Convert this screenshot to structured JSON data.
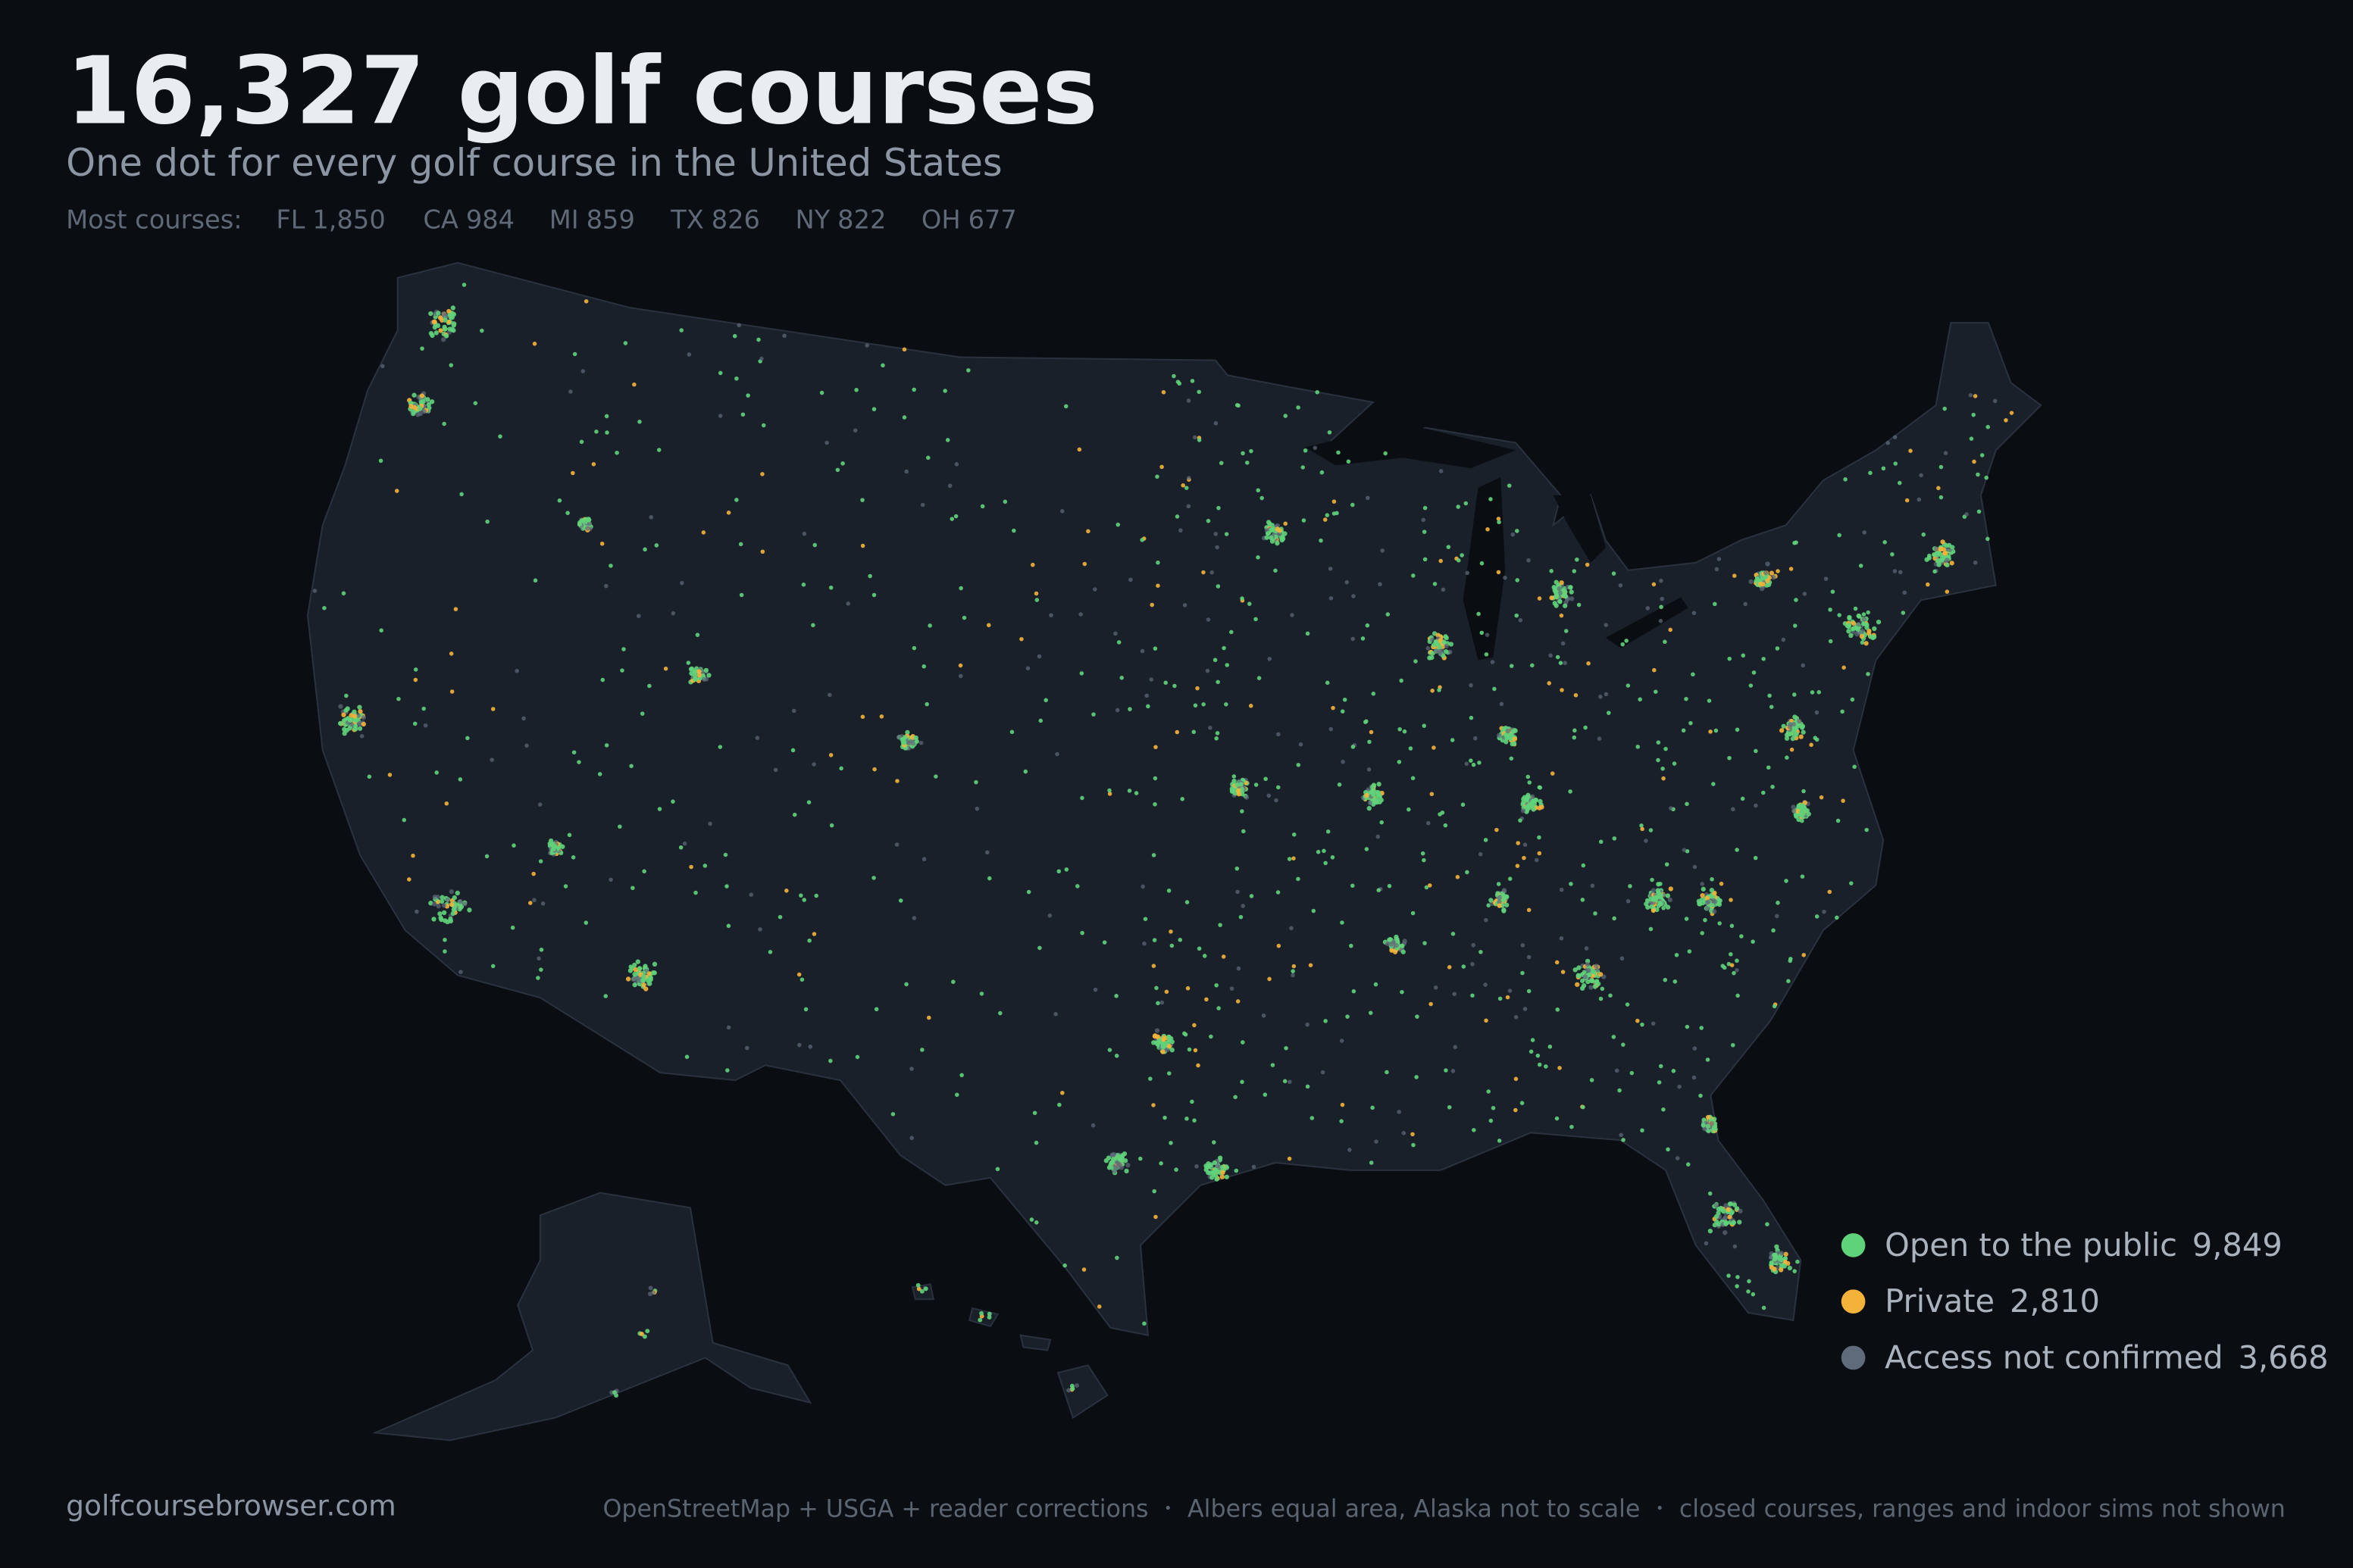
{
  "title": "16,327 golf courses",
  "subtitle": "One dot for every golf course in the United States",
  "top_states": {
    "label": "Most courses:",
    "items": [
      {
        "state": "FL",
        "count": "1,850"
      },
      {
        "state": "CA",
        "count": "984"
      },
      {
        "state": "MI",
        "count": "859"
      },
      {
        "state": "TX",
        "count": "826"
      },
      {
        "state": "NY",
        "count": "822"
      },
      {
        "state": "OH",
        "count": "677"
      }
    ]
  },
  "legend": [
    {
      "label": "Open to the public",
      "count": "9,849",
      "color": "#5fd37a"
    },
    {
      "label": "Private",
      "count": "2,810",
      "color": "#f4b23a"
    },
    {
      "label": "Access not confirmed",
      "count": "3,668",
      "color": "#5f6b7a"
    }
  ],
  "footer": {
    "site": "golfcoursebrowser.com",
    "credits": [
      "OpenStreetMap + USGA + reader corrections",
      "Albers equal area, Alaska not to scale",
      "closed courses, ranges and indoor sims not shown"
    ]
  }
}
